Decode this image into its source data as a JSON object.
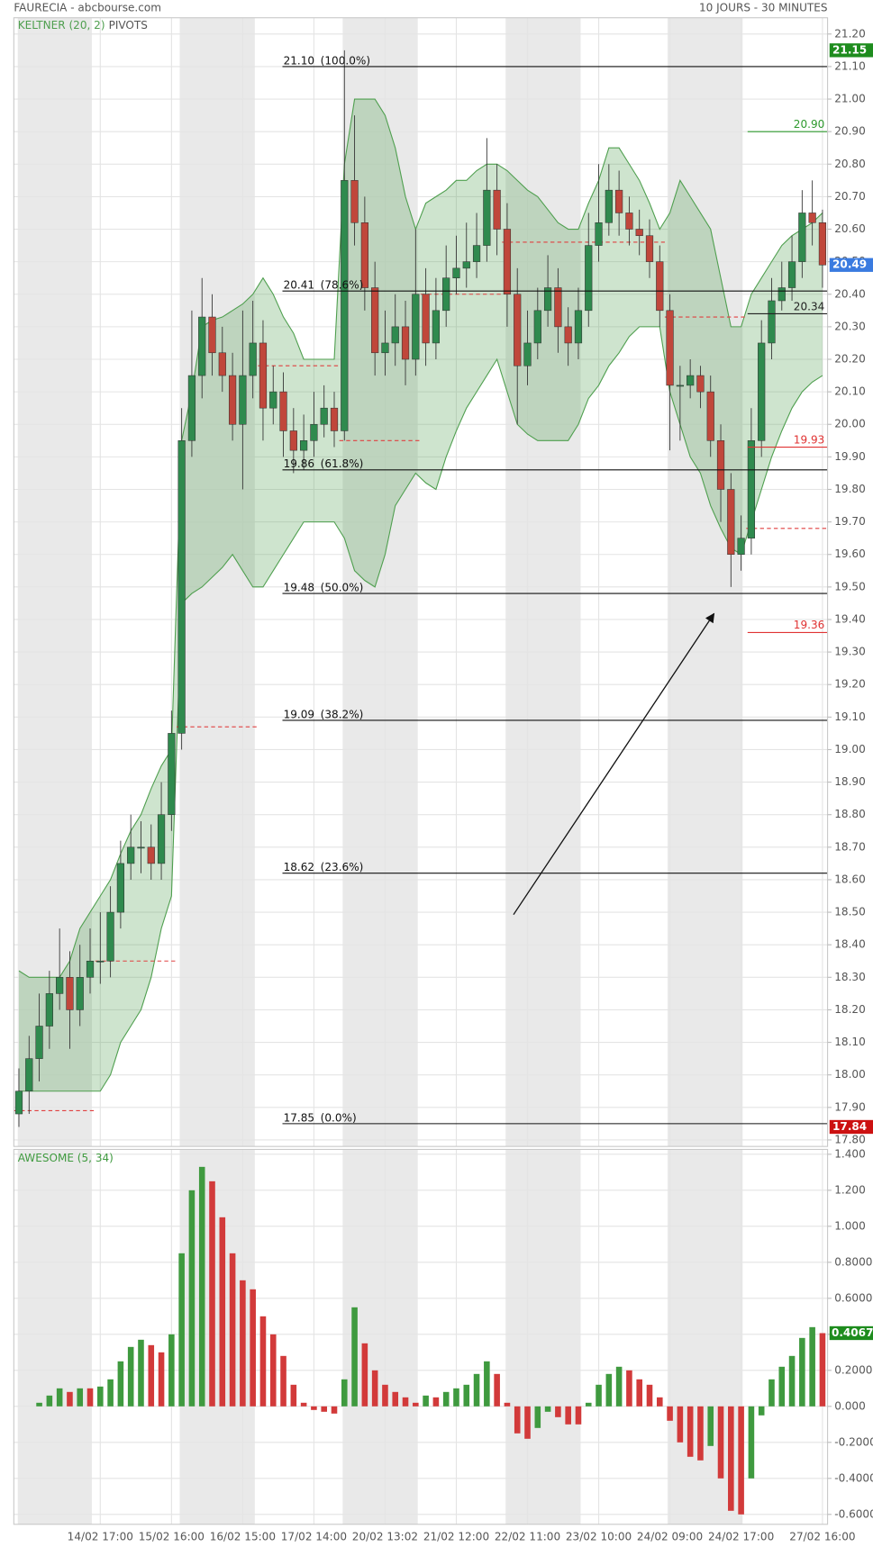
{
  "chart_data": [
    {
      "type": "candlestick",
      "title": "FAURECIA - abcbourse.com",
      "subtitle": "10 JOURS - 30 MINUTES",
      "xlim": [
        -0.5,
        79.5
      ],
      "ylim": [
        17.78,
        21.25
      ],
      "yticks": [
        {
          "value": 17.8,
          "label": "17.80"
        },
        {
          "value": 17.9,
          "label": "17.90"
        },
        {
          "value": 18.0,
          "label": "18.00"
        },
        {
          "value": 18.1,
          "label": "18.10"
        },
        {
          "value": 18.2,
          "label": "18.20"
        },
        {
          "value": 18.3,
          "label": "18.30"
        },
        {
          "value": 18.4,
          "label": "18.40"
        },
        {
          "value": 18.5,
          "label": "18.50"
        },
        {
          "value": 18.6,
          "label": "18.60"
        },
        {
          "value": 18.7,
          "label": "18.70"
        },
        {
          "value": 18.8,
          "label": "18.80"
        },
        {
          "value": 18.9,
          "label": "18.90"
        },
        {
          "value": 19.0,
          "label": "19.00"
        },
        {
          "value": 19.1,
          "label": "19.10"
        },
        {
          "value": 19.2,
          "label": "19.20"
        },
        {
          "value": 19.3,
          "label": "19.30"
        },
        {
          "value": 19.4,
          "label": "19.40"
        },
        {
          "value": 19.5,
          "label": "19.50"
        },
        {
          "value": 19.6,
          "label": "19.60"
        },
        {
          "value": 19.7,
          "label": "19.70"
        },
        {
          "value": 19.8,
          "label": "19.80"
        },
        {
          "value": 19.9,
          "label": "19.90"
        },
        {
          "value": 20.0,
          "label": "20.00"
        },
        {
          "value": 20.1,
          "label": "20.10"
        },
        {
          "value": 20.2,
          "label": "20.20"
        },
        {
          "value": 20.3,
          "label": "20.30"
        },
        {
          "value": 20.4,
          "label": "20.40"
        },
        {
          "value": 20.5,
          "label": "20.50"
        },
        {
          "value": 20.6,
          "label": "20.60"
        },
        {
          "value": 20.7,
          "label": "20.70"
        },
        {
          "value": 20.8,
          "label": "20.80"
        },
        {
          "value": 20.9,
          "label": "20.90"
        },
        {
          "value": 21.0,
          "label": "21.00"
        },
        {
          "value": 21.1,
          "label": "21.10"
        },
        {
          "value": 21.2,
          "label": "21.20"
        }
      ],
      "up_color": "#2f8a4e",
      "down_color": "#c0473b",
      "open": [
        17.88,
        17.95,
        18.05,
        18.15,
        18.25,
        18.3,
        18.2,
        18.3,
        18.35,
        18.35,
        18.5,
        18.65,
        18.7,
        18.7,
        18.65,
        18.8,
        19.05,
        19.95,
        20.15,
        20.33,
        20.22,
        20.15,
        20.0,
        20.15,
        20.25,
        20.05,
        20.1,
        19.98,
        19.92,
        19.95,
        20.0,
        20.05,
        19.98,
        20.75,
        20.62,
        20.42,
        20.22,
        20.25,
        20.3,
        20.2,
        20.4,
        20.25,
        20.35,
        20.45,
        20.48,
        20.5,
        20.55,
        20.72,
        20.6,
        20.4,
        20.18,
        20.25,
        20.35,
        20.42,
        20.3,
        20.25,
        20.35,
        20.55,
        20.62,
        20.72,
        20.65,
        20.6,
        20.58,
        20.5,
        20.35,
        20.12,
        20.12,
        20.15,
        20.1,
        19.95,
        19.8,
        19.6,
        19.65,
        19.95,
        20.25,
        20.38,
        20.42,
        20.5,
        20.65,
        20.62
      ],
      "high": [
        18.02,
        18.12,
        18.25,
        18.32,
        18.45,
        18.38,
        18.4,
        18.45,
        18.5,
        18.58,
        18.72,
        18.8,
        18.78,
        18.77,
        18.9,
        19.12,
        20.05,
        20.35,
        20.45,
        20.4,
        20.3,
        20.22,
        20.35,
        20.38,
        20.32,
        20.18,
        20.16,
        20.05,
        20.03,
        20.1,
        20.12,
        20.1,
        21.15,
        20.95,
        20.7,
        20.5,
        20.35,
        20.4,
        20.38,
        20.6,
        20.48,
        20.45,
        20.55,
        20.58,
        20.62,
        20.65,
        20.88,
        20.8,
        20.68,
        20.48,
        20.35,
        20.42,
        20.52,
        20.48,
        20.36,
        20.42,
        20.65,
        20.8,
        20.8,
        20.78,
        20.7,
        20.66,
        20.63,
        20.55,
        20.4,
        20.18,
        20.2,
        20.18,
        20.15,
        20.0,
        19.85,
        19.72,
        20.05,
        20.32,
        20.45,
        20.5,
        20.58,
        20.72,
        20.75,
        20.66
      ],
      "low": [
        17.84,
        17.88,
        17.98,
        18.08,
        18.2,
        18.08,
        18.15,
        18.25,
        18.28,
        18.3,
        18.45,
        18.6,
        18.62,
        18.6,
        18.6,
        18.75,
        19.0,
        19.9,
        20.08,
        20.15,
        20.1,
        19.95,
        19.8,
        20.08,
        19.95,
        20.0,
        19.9,
        19.85,
        19.86,
        19.9,
        19.96,
        19.93,
        19.95,
        20.55,
        20.35,
        20.15,
        20.15,
        20.18,
        20.12,
        20.15,
        20.18,
        20.2,
        20.3,
        20.4,
        20.42,
        20.45,
        20.5,
        20.52,
        20.3,
        20.0,
        20.12,
        20.2,
        20.3,
        20.22,
        20.18,
        20.2,
        20.3,
        20.5,
        20.58,
        20.58,
        20.55,
        20.52,
        20.45,
        20.3,
        19.92,
        19.95,
        20.08,
        20.05,
        19.9,
        19.7,
        19.5,
        19.55,
        19.6,
        19.9,
        20.2,
        20.35,
        20.38,
        20.45,
        20.55,
        20.42
      ],
      "close": [
        17.95,
        18.05,
        18.15,
        18.25,
        18.3,
        18.2,
        18.3,
        18.35,
        18.35,
        18.5,
        18.65,
        18.7,
        18.7,
        18.65,
        18.8,
        19.05,
        19.95,
        20.15,
        20.33,
        20.22,
        20.15,
        20.0,
        20.15,
        20.25,
        20.05,
        20.1,
        19.98,
        19.92,
        19.95,
        20.0,
        20.05,
        19.98,
        20.75,
        20.62,
        20.42,
        20.22,
        20.25,
        20.3,
        20.2,
        20.4,
        20.25,
        20.35,
        20.45,
        20.48,
        20.5,
        20.55,
        20.72,
        20.6,
        20.4,
        20.18,
        20.25,
        20.35,
        20.42,
        20.3,
        20.25,
        20.35,
        20.55,
        20.62,
        20.72,
        20.65,
        20.6,
        20.58,
        20.5,
        20.35,
        20.12,
        20.12,
        20.15,
        20.1,
        19.95,
        19.8,
        19.6,
        19.65,
        19.95,
        20.25,
        20.38,
        20.42,
        20.5,
        20.65,
        20.62,
        20.49
      ],
      "keltner": {
        "name": "KELTNER (20, 2)",
        "color": "#4f9f4f",
        "upper": [
          18.32,
          18.3,
          18.3,
          18.3,
          18.3,
          18.35,
          18.45,
          18.5,
          18.55,
          18.6,
          18.68,
          18.75,
          18.8,
          18.88,
          18.95,
          19.0,
          19.95,
          20.1,
          20.3,
          20.32,
          20.33,
          20.35,
          20.37,
          20.4,
          20.45,
          20.4,
          20.33,
          20.28,
          20.2,
          20.2,
          20.2,
          20.2,
          20.8,
          21.0,
          21.0,
          21.0,
          20.95,
          20.85,
          20.7,
          20.6,
          20.68,
          20.7,
          20.72,
          20.75,
          20.75,
          20.78,
          20.8,
          20.8,
          20.78,
          20.75,
          20.72,
          20.7,
          20.66,
          20.62,
          20.6,
          20.6,
          20.68,
          20.75,
          20.85,
          20.85,
          20.8,
          20.75,
          20.68,
          20.6,
          20.65,
          20.75,
          20.7,
          20.65,
          20.6,
          20.45,
          20.3,
          20.3,
          20.4,
          20.45,
          20.5,
          20.55,
          20.58,
          20.6,
          20.62,
          20.65
        ],
        "lower": [
          17.95,
          17.95,
          17.95,
          17.95,
          17.95,
          17.95,
          17.95,
          17.95,
          17.95,
          18.0,
          18.1,
          18.15,
          18.2,
          18.3,
          18.45,
          18.55,
          19.45,
          19.48,
          19.5,
          19.53,
          19.56,
          19.6,
          19.55,
          19.5,
          19.5,
          19.55,
          19.6,
          19.65,
          19.7,
          19.7,
          19.7,
          19.7,
          19.65,
          19.55,
          19.52,
          19.5,
          19.6,
          19.75,
          19.8,
          19.85,
          19.82,
          19.8,
          19.9,
          19.98,
          20.05,
          20.1,
          20.15,
          20.2,
          20.1,
          20.0,
          19.97,
          19.95,
          19.95,
          19.95,
          19.95,
          20.0,
          20.08,
          20.12,
          20.18,
          20.22,
          20.27,
          20.3,
          20.3,
          20.3,
          20.1,
          20.0,
          19.9,
          19.85,
          19.75,
          19.68,
          19.62,
          19.6,
          19.7,
          19.8,
          19.9,
          19.98,
          20.05,
          20.1,
          20.13,
          20.15
        ]
      },
      "pivots_label": "PIVOTS",
      "fibonacci": [
        {
          "value": 21.1,
          "label": "21.10",
          "ratio": "(100.0%)"
        },
        {
          "value": 20.41,
          "label": "20.41",
          "ratio": "(78.6%)"
        },
        {
          "value": 19.86,
          "label": "19.86",
          "ratio": "(61.8%)"
        },
        {
          "value": 19.48,
          "label": "19.48",
          "ratio": "(50.0%)"
        },
        {
          "value": 19.09,
          "label": "19.09",
          "ratio": "(38.2%)"
        },
        {
          "value": 18.62,
          "label": "18.62",
          "ratio": "(23.6%)"
        },
        {
          "value": 17.85,
          "label": "17.85",
          "ratio": "(0.0%)"
        }
      ],
      "pivot_levels": [
        {
          "value": 20.9,
          "label": "20.90",
          "color": "#2e9a2e"
        },
        {
          "value": 20.34,
          "label": "20.34",
          "color": "#222222"
        },
        {
          "value": 19.93,
          "label": "19.93",
          "color": "#e03333"
        },
        {
          "value": 19.36,
          "label": "19.36",
          "color": "#e03333"
        }
      ],
      "pivot_segments": [
        {
          "value": 17.89,
          "from": 0,
          "to": 7
        },
        {
          "value": 18.35,
          "from": 8,
          "to": 15
        },
        {
          "value": 19.07,
          "from": 16,
          "to": 23
        },
        {
          "value": 20.18,
          "from": 24,
          "to": 31
        },
        {
          "value": 19.95,
          "from": 32,
          "to": 39
        },
        {
          "value": 20.4,
          "from": 40,
          "to": 47
        },
        {
          "value": 20.56,
          "from": 48,
          "to": 63
        },
        {
          "value": 20.33,
          "from": 64,
          "to": 71
        },
        {
          "value": 19.68,
          "from": 72,
          "to": 79
        }
      ],
      "segment_color": "#e04040",
      "price_tags": [
        {
          "value": 21.15,
          "label": "21.15",
          "color": "#1e8c1e"
        },
        {
          "value": 20.49,
          "label": "20.49",
          "color": "#3a7be0"
        },
        {
          "value": 17.84,
          "label": "17.84",
          "color": "#cc1111"
        }
      ]
    },
    {
      "type": "bar",
      "title": "AWESOME (5, 34)",
      "xlim": [
        -0.5,
        79.5
      ],
      "xticks": [
        {
          "value": 8,
          "label": "14/02 17:00"
        },
        {
          "value": 15,
          "label": "15/02 16:00"
        },
        {
          "value": 22,
          "label": "16/02 15:00"
        },
        {
          "value": 29,
          "label": "17/02 14:00"
        },
        {
          "value": 36,
          "label": "20/02 13:02"
        },
        {
          "value": 43,
          "label": "21/02 12:00"
        },
        {
          "value": 50,
          "label": "22/02 11:00"
        },
        {
          "value": 57,
          "label": "23/02 10:00"
        },
        {
          "value": 64,
          "label": "24/02 09:00"
        },
        {
          "value": 71,
          "label": "24/02 17:00"
        },
        {
          "value": 79,
          "label": "27/02 16:00"
        }
      ],
      "ylim": [
        -0.655,
        1.427
      ],
      "yticks": [
        {
          "value": 1.4,
          "label": "1.400"
        },
        {
          "value": 1.2,
          "label": "1.200"
        },
        {
          "value": 1,
          "label": "1.000"
        },
        {
          "value": 0.8,
          "label": "0.8000"
        },
        {
          "value": 0.6,
          "label": "0.6000"
        },
        {
          "value": 0.4,
          "label": "0.4000"
        },
        {
          "value": 0.2,
          "label": "0.2000"
        },
        {
          "value": 0,
          "label": "0.000"
        },
        {
          "value": -0.2,
          "label": "-0.2000"
        },
        {
          "value": -0.4,
          "label": "-0.4000"
        },
        {
          "value": -0.6,
          "label": "-0.6000"
        }
      ],
      "up_color": "#3f9a3f",
      "down_color": "#d23a3a",
      "values": [
        null,
        null,
        0.02,
        0.06,
        0.1,
        0.08,
        0.1,
        0.1,
        0.11,
        0.15,
        0.25,
        0.33,
        0.37,
        0.34,
        0.3,
        0.4,
        0.85,
        1.2,
        1.33,
        1.25,
        1.05,
        0.85,
        0.7,
        0.65,
        0.5,
        0.4,
        0.28,
        0.12,
        0.02,
        -0.02,
        -0.03,
        -0.04,
        0.15,
        0.55,
        0.35,
        0.2,
        0.12,
        0.08,
        0.05,
        0.02,
        0.06,
        0.05,
        0.08,
        0.1,
        0.12,
        0.18,
        0.25,
        0.18,
        0.02,
        -0.15,
        -0.18,
        -0.12,
        -0.03,
        -0.06,
        -0.1,
        -0.1,
        0.02,
        0.12,
        0.18,
        0.22,
        0.2,
        0.15,
        0.12,
        0.05,
        -0.08,
        -0.2,
        -0.28,
        -0.3,
        -0.22,
        -0.4,
        -0.58,
        -0.6,
        -0.4,
        -0.05,
        0.15,
        0.22,
        0.28,
        0.38,
        0.44,
        0.4067
      ],
      "last_tag": {
        "value": 0.4067,
        "color": "#1e8c1e"
      }
    }
  ]
}
